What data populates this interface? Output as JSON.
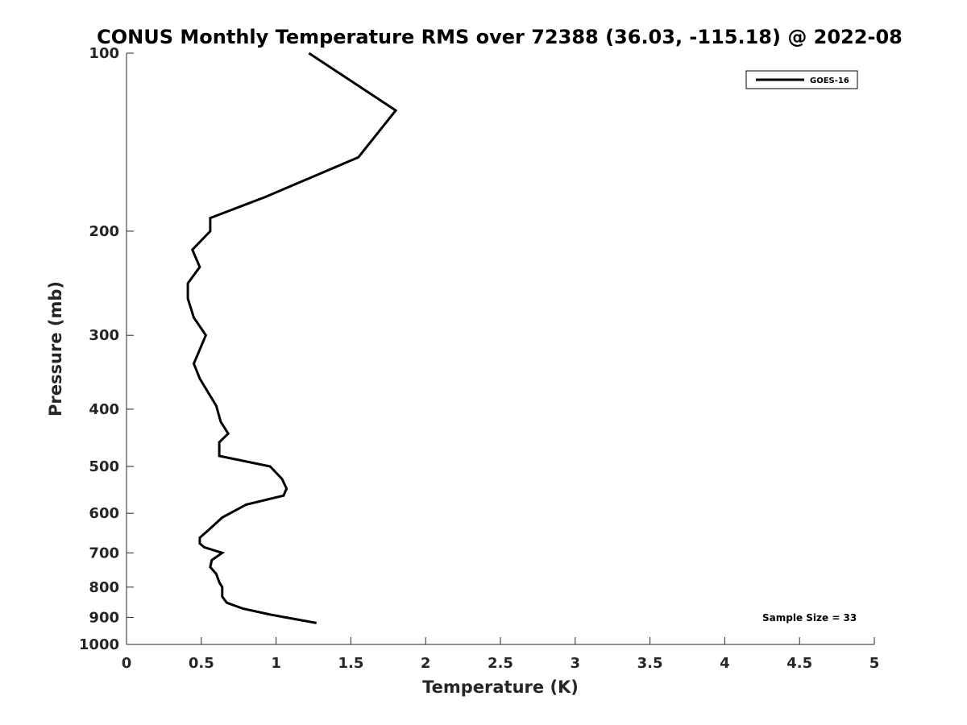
{
  "chart_data": {
    "type": "line",
    "title": "CONUS Monthly Temperature RMS over 72388 (36.03, -115.18) @ 2022-08",
    "xlabel": "Temperature (K)",
    "ylabel": "Pressure (mb)",
    "xlim": [
      0,
      5
    ],
    "ylim": [
      100,
      1000
    ],
    "y_scale": "log",
    "y_reversed": true,
    "grid": false,
    "legend_position": "top-right",
    "x_ticks": [
      0,
      0.5,
      1,
      1.5,
      2,
      2.5,
      3,
      3.5,
      4,
      4.5,
      5
    ],
    "x_tick_labels": [
      "0",
      "0.5",
      "1",
      "1.5",
      "2",
      "2.5",
      "3",
      "3.5",
      "4",
      "4.5",
      "5"
    ],
    "y_ticks": [
      100,
      200,
      300,
      400,
      500,
      600,
      700,
      800,
      900,
      1000
    ],
    "y_tick_labels": [
      "100",
      "200",
      "300",
      "400",
      "500",
      "600",
      "700",
      "800",
      "900",
      "1000"
    ],
    "series": [
      {
        "name": "GOES-16",
        "color": "#000000",
        "points": [
          [
            1.22,
            100
          ],
          [
            1.8,
            125
          ],
          [
            1.55,
            150
          ],
          [
            0.93,
            175
          ],
          [
            0.56,
            190
          ],
          [
            0.56,
            200
          ],
          [
            0.44,
            215
          ],
          [
            0.49,
            230
          ],
          [
            0.41,
            245
          ],
          [
            0.41,
            260
          ],
          [
            0.45,
            280
          ],
          [
            0.53,
            300
          ],
          [
            0.45,
            335
          ],
          [
            0.49,
            355
          ],
          [
            0.6,
            395
          ],
          [
            0.63,
            420
          ],
          [
            0.68,
            440
          ],
          [
            0.62,
            455
          ],
          [
            0.62,
            480
          ],
          [
            0.96,
            500
          ],
          [
            1.04,
            525
          ],
          [
            1.07,
            545
          ],
          [
            1.05,
            560
          ],
          [
            0.8,
            580
          ],
          [
            0.64,
            610
          ],
          [
            0.55,
            640
          ],
          [
            0.49,
            660
          ],
          [
            0.49,
            675
          ],
          [
            0.52,
            685
          ],
          [
            0.64,
            700
          ],
          [
            0.57,
            720
          ],
          [
            0.56,
            740
          ],
          [
            0.6,
            760
          ],
          [
            0.62,
            785
          ],
          [
            0.64,
            800
          ],
          [
            0.64,
            830
          ],
          [
            0.67,
            850
          ],
          [
            0.78,
            870
          ],
          [
            0.96,
            890
          ],
          [
            1.27,
            920
          ]
        ]
      }
    ],
    "annotations": [
      "Sample Size = 33"
    ]
  }
}
